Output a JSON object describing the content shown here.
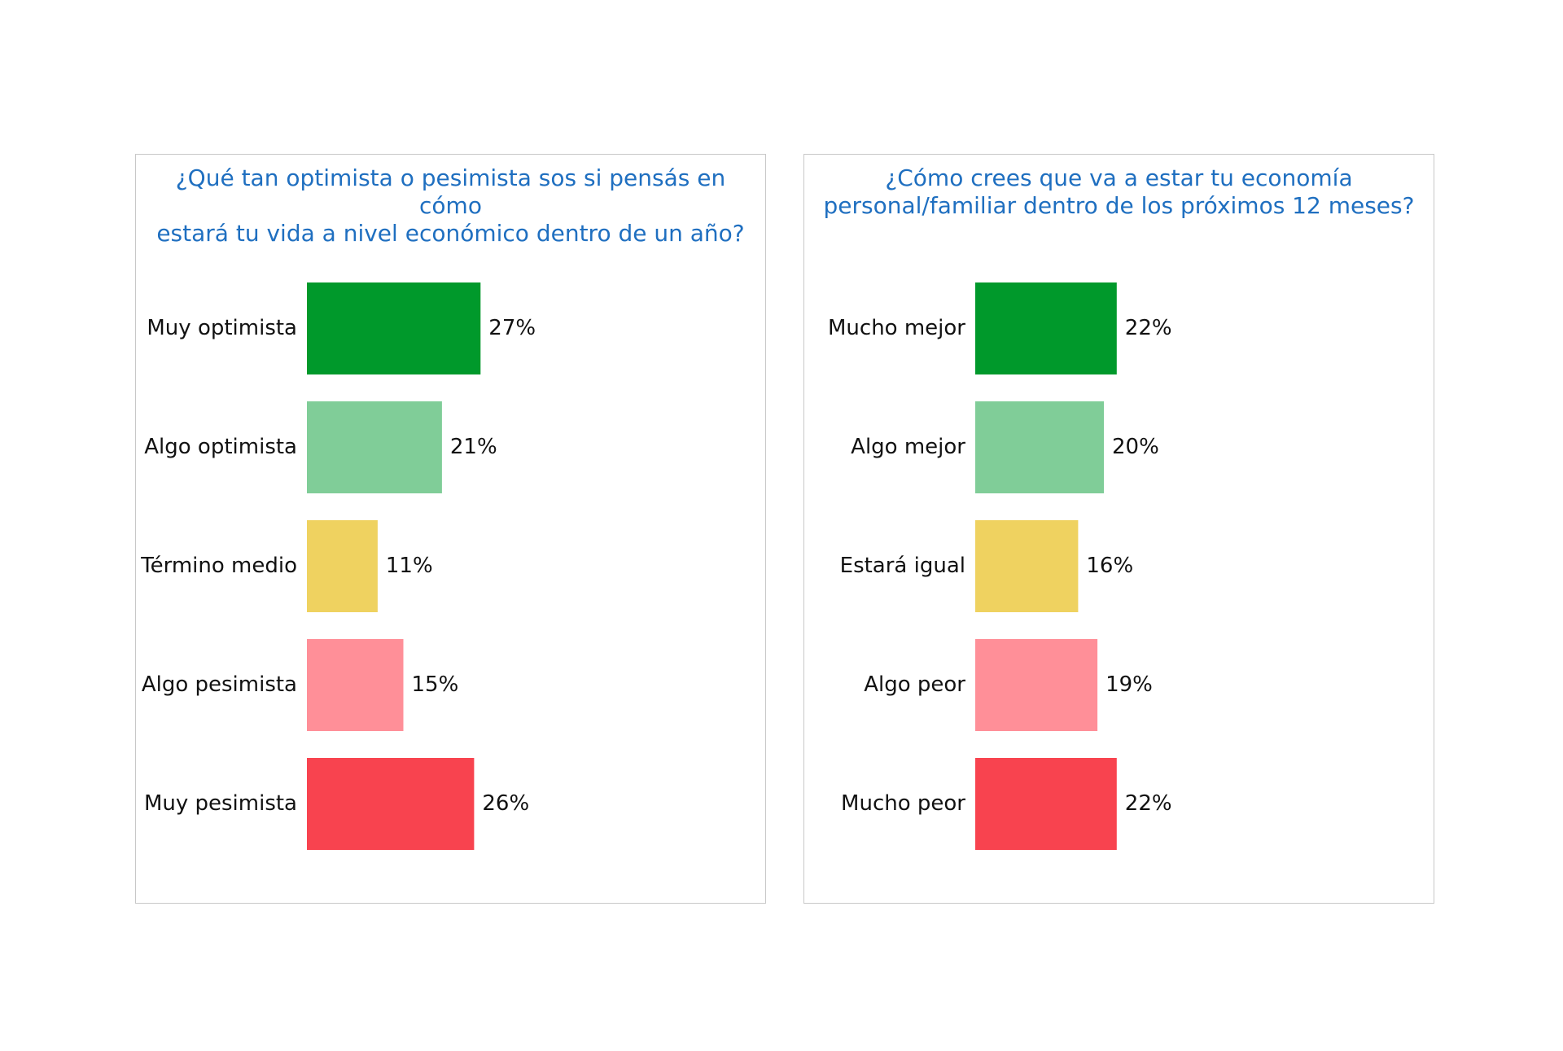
{
  "chart_data": [
    {
      "type": "bar",
      "orientation": "horizontal",
      "title_lines": [
        "¿Qué tan optimista o pesimista sos si pensás en cómo",
        "estará tu vida a nivel económico dentro de un año?"
      ],
      "categories": [
        "Muy optimista",
        "Algo optimista",
        "Término medio",
        "Algo pesimista",
        "Muy pesimista"
      ],
      "values": [
        27,
        21,
        11,
        15,
        26
      ],
      "value_labels": [
        "27%",
        "21%",
        "11%",
        "15%",
        "26%"
      ],
      "colors": [
        "#00992b",
        "#80cd98",
        "#efd260",
        "#ff8f98",
        "#f8434f"
      ],
      "xlim": [
        0,
        100
      ],
      "grid": false,
      "legend": "none"
    },
    {
      "type": "bar",
      "orientation": "horizontal",
      "title_lines": [
        "¿Cómo crees que va a estar tu economía",
        "personal/familiar dentro de los próximos 12 meses?"
      ],
      "categories": [
        "Mucho mejor",
        "Algo mejor",
        "Estará igual",
        "Algo peor",
        "Mucho peor"
      ],
      "values": [
        22,
        20,
        16,
        19,
        22
      ],
      "value_labels": [
        "22%",
        "20%",
        "16%",
        "19%",
        "22%"
      ],
      "colors": [
        "#00992b",
        "#80cd98",
        "#efd260",
        "#ff8f98",
        "#f8434f"
      ],
      "xlim": [
        0,
        100
      ],
      "grid": false,
      "legend": "none"
    }
  ],
  "title_color": "#1f6fc0"
}
